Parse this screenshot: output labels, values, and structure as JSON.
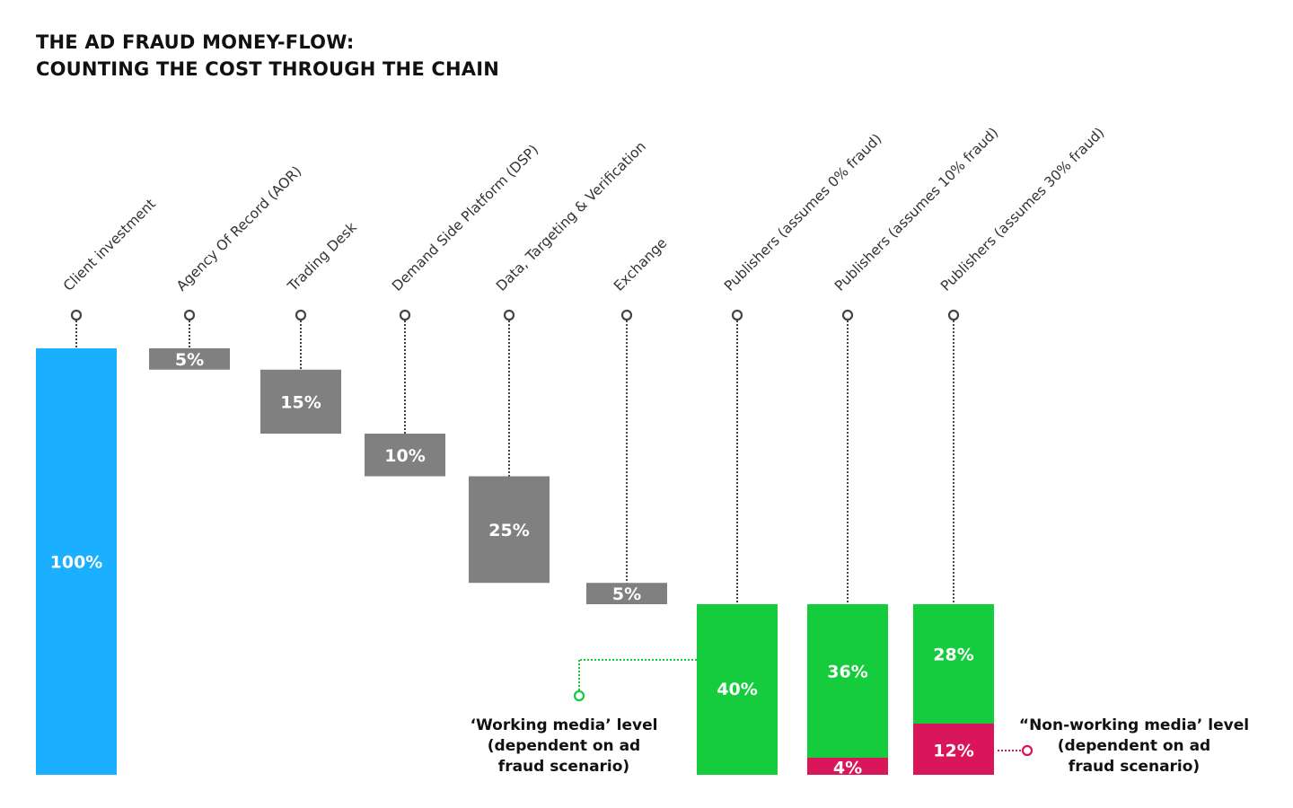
{
  "title": {
    "line1": "THE AD FRAUD MONEY-FLOW:",
    "line2": "COUNTING THE COST THROUGH THE CHAIN"
  },
  "colors": {
    "client": "#1aafff",
    "cost": "#808080",
    "working": "#14cc3c",
    "fraud": "#d9165a",
    "connector": "#444444"
  },
  "chart_data": {
    "type": "waterfall",
    "title": "THE AD FRAUD MONEY-FLOW: COUNTING THE COST THROUGH THE CHAIN",
    "unit": "%",
    "ylim": [
      0,
      100
    ],
    "grid": false,
    "categories": [
      "Client investment",
      "Agency Of Record (AOR)",
      "Trading Desk",
      "Demand Side Platform (DSP)",
      "Data, Targeting & Verification",
      "Exchange",
      "Publishers (assumes 0% fraud)",
      "Publishers (assumes 10% fraud)",
      "Publishers (assumes 30% fraud)"
    ],
    "stages": [
      {
        "category": "Client investment",
        "kind": "client",
        "from": 0,
        "to": 100,
        "label": "100%"
      },
      {
        "category": "Agency Of Record (AOR)",
        "kind": "cost",
        "from": 95,
        "to": 100,
        "label": "5%"
      },
      {
        "category": "Trading Desk",
        "kind": "cost",
        "from": 80,
        "to": 95,
        "label": "15%"
      },
      {
        "category": "Demand Side Platform (DSP)",
        "kind": "cost",
        "from": 70,
        "to": 80,
        "label": "10%"
      },
      {
        "category": "Data, Targeting & Verification",
        "kind": "cost",
        "from": 45,
        "to": 70,
        "label": "25%"
      },
      {
        "category": "Exchange",
        "kind": "cost",
        "from": 40,
        "to": 45,
        "label": "5%"
      },
      {
        "category": "Publishers (assumes 0% fraud)",
        "kind": "publisher",
        "segments": [
          {
            "kind": "working",
            "value": 40,
            "label": "40%"
          }
        ]
      },
      {
        "category": "Publishers (assumes 10% fraud)",
        "kind": "publisher",
        "segments": [
          {
            "kind": "fraud",
            "value": 4,
            "label": "4%"
          },
          {
            "kind": "working",
            "value": 36,
            "label": "36%"
          }
        ]
      },
      {
        "category": "Publishers (assumes 30% fraud)",
        "kind": "publisher",
        "segments": [
          {
            "kind": "fraud",
            "value": 12,
            "label": "12%"
          },
          {
            "kind": "working",
            "value": 28,
            "label": "28%"
          }
        ]
      }
    ],
    "annotations": {
      "working": [
        "‘Working media’ level",
        "(dependent on ad",
        "fraud scenario)"
      ],
      "non_working": [
        "“Non-working media’ level",
        "(dependent on ad",
        "fraud scenario)"
      ]
    }
  }
}
